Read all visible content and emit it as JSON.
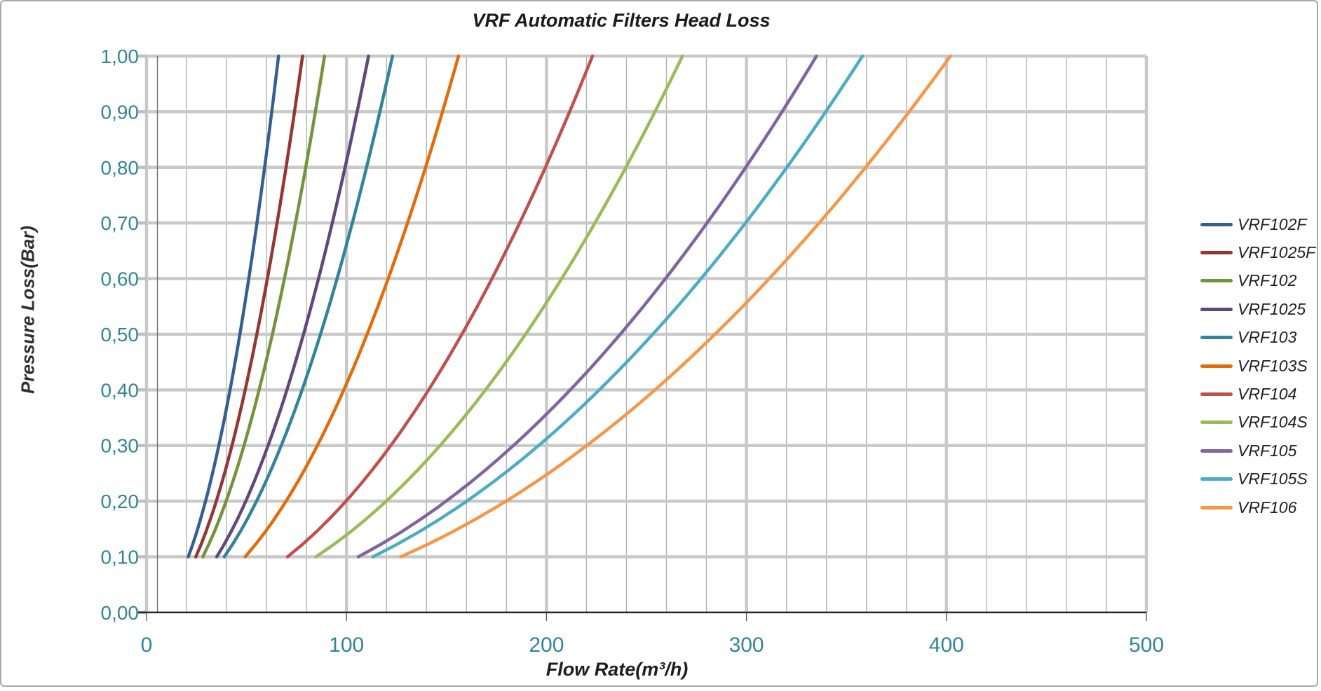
{
  "frame": {
    "background": "#ffffff",
    "border_color": "#a9a9a9"
  },
  "chart_data": {
    "type": "line",
    "title": "VRF Automatic Filters Head Loss",
    "xlabel": "Flow Rate(m³/h)",
    "ylabel": "Pressure Loss(Bar)",
    "xlim": [
      0,
      500
    ],
    "ylim": [
      0.0,
      1.0
    ],
    "x_major_ticks": [
      0,
      100,
      200,
      300,
      400,
      500
    ],
    "x_tick_labels": [
      "0",
      "100",
      "200",
      "300",
      "400",
      "500"
    ],
    "x_minor_step": 20,
    "y_major_step": 0.1,
    "y_tick_labels": [
      "0,00",
      "0,10",
      "0,20",
      "0,30",
      "0,40",
      "0,50",
      "0,60",
      "0,70",
      "0,80",
      "0,90",
      "1,00"
    ],
    "grid": true,
    "legend_position": "right",
    "tick_label_color": "#31849B",
    "major_grid_color": "#c9c9c9",
    "minor_grid_color": "#b3b3b3",
    "axis_line_color": "#262626",
    "model": "pressure = (flow / flow_at_1bar)^2, each curve plotted from 0.10 to 1.00 Bar",
    "series": [
      {
        "name": "VRF102F",
        "color": "#365F91",
        "flow_at_1bar": 66,
        "points": [
          [
            20.9,
            0.1
          ],
          [
            29.5,
            0.2
          ],
          [
            36.1,
            0.3
          ],
          [
            41.7,
            0.4
          ],
          [
            46.7,
            0.5
          ],
          [
            51.1,
            0.6
          ],
          [
            55.2,
            0.7
          ],
          [
            59.0,
            0.8
          ],
          [
            62.6,
            0.9
          ],
          [
            66.0,
            1.0
          ]
        ]
      },
      {
        "name": "VRF1025F",
        "color": "#943634",
        "flow_at_1bar": 78,
        "points": [
          [
            24.7,
            0.1
          ],
          [
            34.9,
            0.2
          ],
          [
            42.7,
            0.3
          ],
          [
            49.3,
            0.4
          ],
          [
            55.2,
            0.5
          ],
          [
            60.4,
            0.6
          ],
          [
            65.3,
            0.7
          ],
          [
            69.8,
            0.8
          ],
          [
            74.0,
            0.9
          ],
          [
            78.0,
            1.0
          ]
        ]
      },
      {
        "name": "VRF102",
        "color": "#76923C",
        "flow_at_1bar": 89,
        "points": [
          [
            28.1,
            0.1
          ],
          [
            39.8,
            0.2
          ],
          [
            48.7,
            0.3
          ],
          [
            56.3,
            0.4
          ],
          [
            62.9,
            0.5
          ],
          [
            68.9,
            0.6
          ],
          [
            74.5,
            0.7
          ],
          [
            79.6,
            0.8
          ],
          [
            84.4,
            0.9
          ],
          [
            89.0,
            1.0
          ]
        ]
      },
      {
        "name": "VRF1025",
        "color": "#5F497A",
        "flow_at_1bar": 111,
        "points": [
          [
            35.1,
            0.1
          ],
          [
            49.6,
            0.2
          ],
          [
            60.8,
            0.3
          ],
          [
            70.2,
            0.4
          ],
          [
            78.5,
            0.5
          ],
          [
            86.0,
            0.6
          ],
          [
            92.9,
            0.7
          ],
          [
            99.3,
            0.8
          ],
          [
            105.3,
            0.9
          ],
          [
            111.0,
            1.0
          ]
        ]
      },
      {
        "name": "VRF103",
        "color": "#31849B",
        "flow_at_1bar": 123,
        "points": [
          [
            38.9,
            0.1
          ],
          [
            55.0,
            0.2
          ],
          [
            67.4,
            0.3
          ],
          [
            77.8,
            0.4
          ],
          [
            87.0,
            0.5
          ],
          [
            95.3,
            0.6
          ],
          [
            102.9,
            0.7
          ],
          [
            110.0,
            0.8
          ],
          [
            116.7,
            0.9
          ],
          [
            123.0,
            1.0
          ]
        ]
      },
      {
        "name": "VRF103S",
        "color": "#E36C0A",
        "flow_at_1bar": 156,
        "points": [
          [
            49.3,
            0.1
          ],
          [
            69.8,
            0.2
          ],
          [
            85.4,
            0.3
          ],
          [
            98.7,
            0.4
          ],
          [
            110.3,
            0.5
          ],
          [
            120.8,
            0.6
          ],
          [
            130.5,
            0.7
          ],
          [
            139.5,
            0.8
          ],
          [
            148.0,
            0.9
          ],
          [
            156.0,
            1.0
          ]
        ]
      },
      {
        "name": "VRF104",
        "color": "#C0504D",
        "flow_at_1bar": 223,
        "points": [
          [
            70.5,
            0.1
          ],
          [
            99.7,
            0.2
          ],
          [
            122.1,
            0.3
          ],
          [
            141.0,
            0.4
          ],
          [
            157.7,
            0.5
          ],
          [
            172.7,
            0.6
          ],
          [
            186.6,
            0.7
          ],
          [
            199.5,
            0.8
          ],
          [
            211.6,
            0.9
          ],
          [
            223.0,
            1.0
          ]
        ]
      },
      {
        "name": "VRF104S",
        "color": "#9BBB59",
        "flow_at_1bar": 268,
        "points": [
          [
            84.7,
            0.1
          ],
          [
            119.9,
            0.2
          ],
          [
            146.8,
            0.3
          ],
          [
            169.5,
            0.4
          ],
          [
            189.5,
            0.5
          ],
          [
            207.6,
            0.6
          ],
          [
            224.2,
            0.7
          ],
          [
            239.7,
            0.8
          ],
          [
            254.2,
            0.9
          ],
          [
            268.0,
            1.0
          ]
        ]
      },
      {
        "name": "VRF105",
        "color": "#8064A2",
        "flow_at_1bar": 335,
        "points": [
          [
            105.9,
            0.1
          ],
          [
            149.8,
            0.2
          ],
          [
            183.5,
            0.3
          ],
          [
            211.9,
            0.4
          ],
          [
            236.9,
            0.5
          ],
          [
            259.5,
            0.6
          ],
          [
            280.3,
            0.7
          ],
          [
            299.6,
            0.8
          ],
          [
            317.8,
            0.9
          ],
          [
            335.0,
            1.0
          ]
        ]
      },
      {
        "name": "VRF105S",
        "color": "#4BACC6",
        "flow_at_1bar": 358,
        "points": [
          [
            113.2,
            0.1
          ],
          [
            160.1,
            0.2
          ],
          [
            196.1,
            0.3
          ],
          [
            226.4,
            0.4
          ],
          [
            253.1,
            0.5
          ],
          [
            277.3,
            0.6
          ],
          [
            299.5,
            0.7
          ],
          [
            320.2,
            0.8
          ],
          [
            339.6,
            0.9
          ],
          [
            358.0,
            1.0
          ]
        ]
      },
      {
        "name": "VRF106",
        "color": "#F79646",
        "flow_at_1bar": 402,
        "points": [
          [
            127.1,
            0.1
          ],
          [
            179.8,
            0.2
          ],
          [
            220.2,
            0.3
          ],
          [
            254.2,
            0.4
          ],
          [
            284.3,
            0.5
          ],
          [
            311.4,
            0.6
          ],
          [
            336.3,
            0.7
          ],
          [
            359.6,
            0.8
          ],
          [
            381.4,
            0.9
          ],
          [
            402.0,
            1.0
          ]
        ]
      }
    ]
  }
}
